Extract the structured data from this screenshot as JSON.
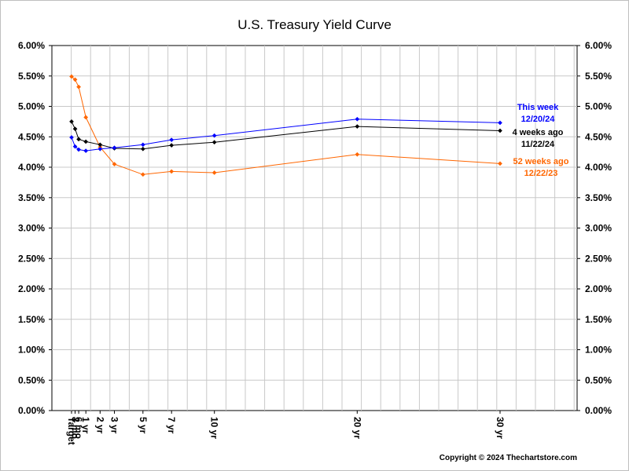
{
  "chart_data": {
    "type": "line",
    "title": "U.S. Treasury Yield Curve",
    "x_labels": [
      "Target",
      "3 mo",
      "6 mo",
      "1 yr",
      "2 yr",
      "3 yr",
      "5 yr",
      "7 yr",
      "10 yr",
      "20 yr",
      "30 yr"
    ],
    "x_positions_years": [
      0,
      0.25,
      0.5,
      1,
      2,
      3,
      5,
      7,
      10,
      20,
      30
    ],
    "ylim": [
      0,
      6
    ],
    "y_ticks": [
      "0.00%",
      "0.50%",
      "1.00%",
      "1.50%",
      "2.00%",
      "2.50%",
      "3.00%",
      "3.50%",
      "4.00%",
      "4.50%",
      "5.00%",
      "5.50%",
      "6.00%"
    ],
    "grid": true,
    "series": [
      {
        "name": "This week",
        "date": "12/20/24",
        "color": "#0000ff",
        "values": [
          4.49,
          4.34,
          4.29,
          4.27,
          4.3,
          4.32,
          4.37,
          4.45,
          4.52,
          4.79,
          4.73
        ]
      },
      {
        "name": "4 weeks ago",
        "date": "11/22/24",
        "color": "#000000",
        "values": [
          4.75,
          4.63,
          4.46,
          4.42,
          4.37,
          4.31,
          4.3,
          4.36,
          4.41,
          4.67,
          4.6
        ]
      },
      {
        "name": "52 weeks ago",
        "date": "12/22/23",
        "color": "#ff6600",
        "values": [
          5.49,
          5.44,
          5.32,
          4.82,
          4.33,
          4.05,
          3.88,
          3.93,
          3.91,
          4.21,
          4.06
        ]
      }
    ]
  },
  "copyright": "Copyright © 2024 Thechartstore.com"
}
